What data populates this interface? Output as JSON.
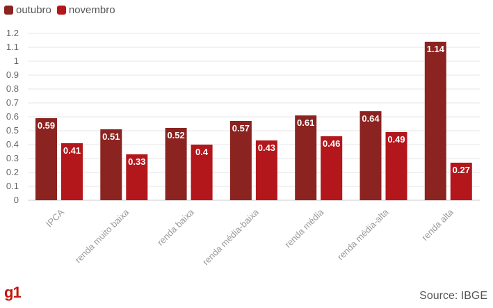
{
  "legend": {
    "items": [
      {
        "name": "outubro",
        "color": "#8b2320"
      },
      {
        "name": "novembro",
        "color": "#b3161b"
      }
    ]
  },
  "logo": {
    "text": "g1"
  },
  "source": {
    "text": "Source: IBGE"
  },
  "chart_data": {
    "type": "bar",
    "categories": [
      "IPCA",
      "renda muito baixa",
      "renda baixa",
      "renda média-baixa",
      "renda média",
      "renda média-alta",
      "renda alta"
    ],
    "series": [
      {
        "name": "outubro",
        "color": "#8b2320",
        "values": [
          0.59,
          0.51,
          0.52,
          0.57,
          0.61,
          0.64,
          1.14
        ]
      },
      {
        "name": "novembro",
        "color": "#b3161b",
        "values": [
          0.41,
          0.33,
          0.4,
          0.43,
          0.46,
          0.49,
          0.27
        ]
      }
    ],
    "ylim": [
      0,
      1.2
    ],
    "yticks": [
      "0",
      "0.1",
      "0.2",
      "0.3",
      "0.4",
      "0.5",
      "0.6",
      "0.7",
      "0.8",
      "0.9",
      "1",
      "1.1",
      "1.2"
    ],
    "value_labels": [
      [
        "0.59",
        "0.51",
        "0.52",
        "0.57",
        "0.61",
        "0.64",
        "1.14"
      ],
      [
        "0.41",
        "0.33",
        "0.4",
        "0.43",
        "0.46",
        "0.49",
        "0.27"
      ]
    ],
    "grid": true,
    "legend_position": "top-left"
  }
}
